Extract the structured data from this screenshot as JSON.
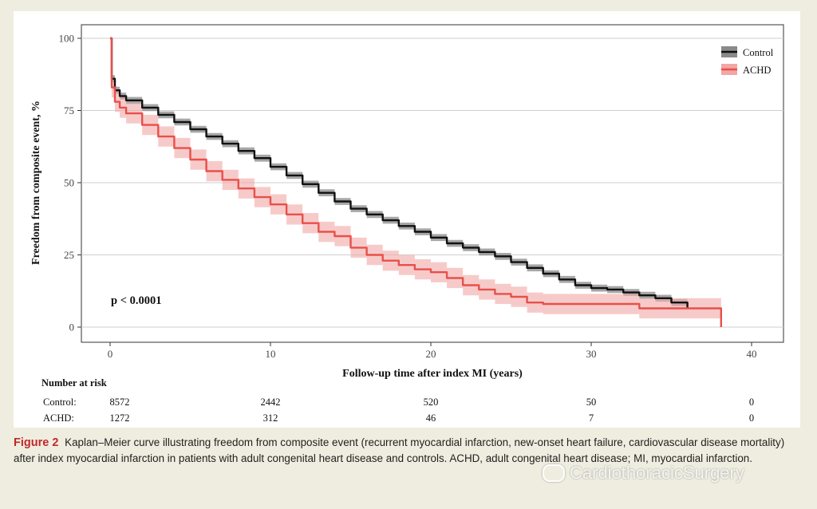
{
  "chart_data": {
    "type": "line",
    "subtype": "kaplan-meier",
    "xlabel": "Follow-up time after index MI (years)",
    "ylabel": "Freedom from composite event, %",
    "xlim": [
      0,
      40
    ],
    "ylim": [
      0,
      100
    ],
    "xticks": [
      0,
      10,
      20,
      30,
      40
    ],
    "yticks": [
      0,
      25,
      50,
      75,
      100
    ],
    "grid": true,
    "legend_position": "top-right",
    "annotation": "p < 0.0001",
    "series": [
      {
        "name": "Control",
        "color": "#111111",
        "band_color": "#8a8a8a",
        "ci_halfwidth": 1.2,
        "x": [
          0,
          0.1,
          0.3,
          0.6,
          1,
          2,
          3,
          4,
          5,
          6,
          7,
          8,
          9,
          10,
          11,
          12,
          13,
          14,
          15,
          16,
          17,
          18,
          19,
          20,
          21,
          22,
          23,
          24,
          25,
          26,
          27,
          28,
          29,
          30,
          31,
          32,
          33,
          34,
          35,
          36
        ],
        "y": [
          100,
          86,
          82,
          80,
          78.5,
          76,
          73.5,
          71,
          68.5,
          66,
          63.5,
          61,
          58.5,
          55.5,
          52.5,
          49.5,
          46.5,
          43.5,
          41,
          39,
          37,
          35,
          33,
          31,
          29,
          27.5,
          26,
          24.5,
          22.5,
          20.5,
          18.5,
          16.5,
          14.5,
          13.5,
          13,
          12,
          11,
          10,
          8.5,
          6.5
        ]
      },
      {
        "name": "ACHD",
        "color": "#e8504a",
        "band_color": "#f2a6a6",
        "ci_halfwidth": 3.5,
        "x": [
          0,
          0.1,
          0.3,
          0.6,
          1,
          2,
          3,
          4,
          5,
          6,
          7,
          8,
          9,
          10,
          11,
          12,
          13,
          14,
          15,
          16,
          17,
          18,
          19,
          20,
          21,
          22,
          23,
          24,
          25,
          26,
          27,
          28,
          29,
          30,
          31,
          32,
          33,
          34,
          35,
          36,
          37,
          38,
          38.1
        ],
        "y": [
          100,
          83,
          78,
          76,
          74,
          70,
          66,
          62,
          58,
          54,
          51,
          48,
          45,
          42.5,
          39,
          36,
          33,
          31.5,
          27.5,
          25,
          23,
          21.5,
          20,
          19,
          17,
          14.5,
          13,
          11.5,
          10.5,
          8.5,
          8,
          8,
          8,
          8,
          8,
          8,
          6.5,
          6.5,
          6.5,
          6.5,
          6.5,
          6.5,
          0
        ]
      }
    ],
    "number_at_risk": {
      "title": "Number at risk",
      "times": [
        0,
        10,
        20,
        30,
        40
      ],
      "rows": [
        {
          "label": "Control:",
          "values": [
            "8572",
            "2442",
            "520",
            "50",
            "0"
          ]
        },
        {
          "label": "ACHD:",
          "values": [
            "1272",
            "312",
            "46",
            "7",
            "0"
          ]
        }
      ]
    }
  },
  "caption": {
    "label": "Figure 2",
    "text": "Kaplan–Meier curve illustrating freedom from composite event (recurrent myocardial infarction, new-onset heart failure, cardiovascular disease mortality) after index myocardial infarction in patients with adult congenital heart disease and controls. ACHD, adult congenital heart disease; MI, myocardial infarction."
  },
  "watermark": "CardiothoracicSurgery"
}
